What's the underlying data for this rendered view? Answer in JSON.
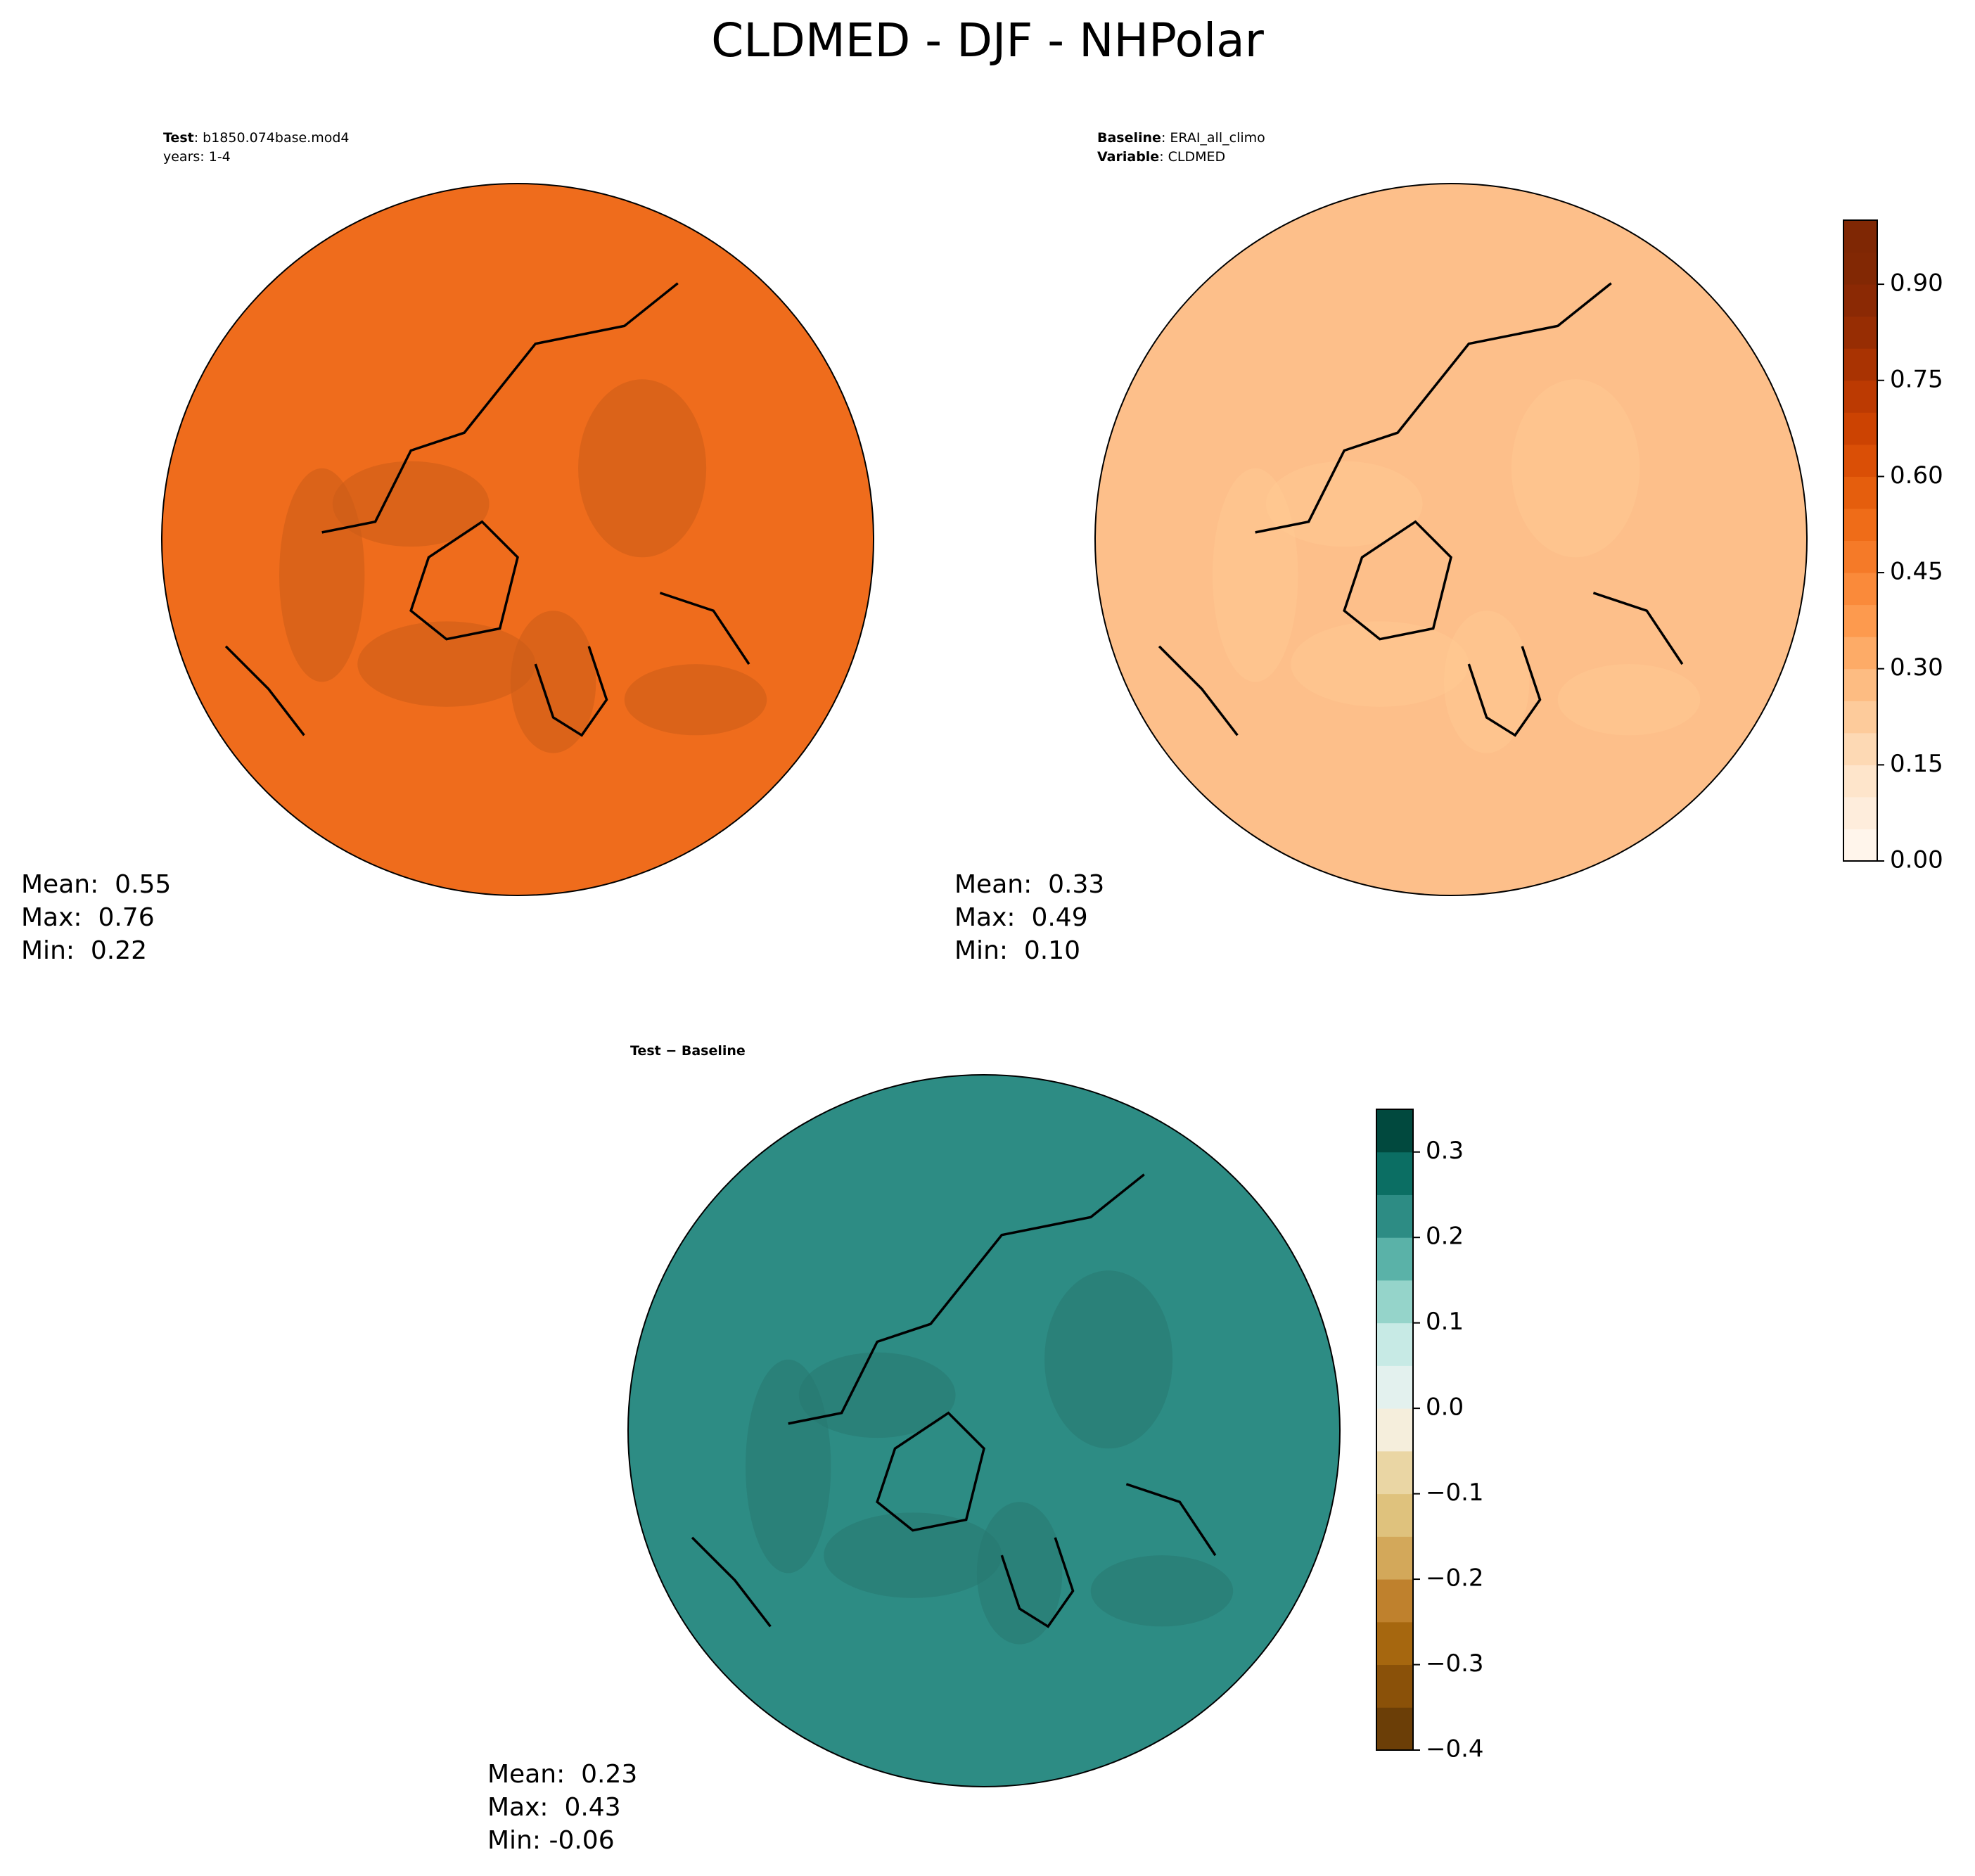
{
  "title": "CLDMED - DJF - NHPolar",
  "panels": [
    {
      "header": [
        {
          "key": "Test",
          "text": ": b1850.074base.mod4"
        },
        {
          "text": "years: 1-4"
        }
      ],
      "stats": [
        "Mean:  0.55",
        "Max:  0.76",
        "Min:  0.22"
      ],
      "field_color": "#ef6c1c"
    },
    {
      "header": [
        {
          "key": "Baseline",
          "text": ": ERAI_all_climo"
        },
        {
          "key": "Variable",
          "text": ": CLDMED"
        }
      ],
      "stats": [
        "Mean:  0.33",
        "Max:  0.49",
        "Min:  0.10"
      ],
      "field_color": "#fdbf8a"
    },
    {
      "header": [
        {
          "key": "Test − Baseline"
        }
      ],
      "stats": [
        "Mean:  0.23",
        "Max:  0.43",
        "Min: -0.06"
      ],
      "field_color": "#2d8c84"
    }
  ],
  "colorbars": [
    {
      "lim": [
        0,
        1
      ],
      "ticks": [
        {
          "value": 0,
          "label": "0.00"
        },
        {
          "value": 0.15,
          "label": "0.15"
        },
        {
          "value": 0.3,
          "label": "0.30"
        },
        {
          "value": 0.45,
          "label": "0.45"
        },
        {
          "value": 0.6,
          "label": "0.60"
        },
        {
          "value": 0.75,
          "label": "0.75"
        },
        {
          "value": 0.9,
          "label": "0.90"
        }
      ],
      "colors": [
        "#fff5eb",
        "#feeddc",
        "#fee5cb",
        "#fdd9b4",
        "#fdcb9b",
        "#fdbc82",
        "#fdab67",
        "#fd9a4e",
        "#fa8a3a",
        "#f57a28",
        "#ef6c18",
        "#e55e0d",
        "#da4f06",
        "#cc4302",
        "#bc3a02",
        "#a93302",
        "#972d03",
        "#8b2904",
        "#822804",
        "#7f2704"
      ]
    },
    {
      "lim": [
        -0.4,
        0.35
      ],
      "ticks": [
        {
          "value": -0.4,
          "label": "−0.4"
        },
        {
          "value": -0.3,
          "label": "−0.3"
        },
        {
          "value": -0.2,
          "label": "−0.2"
        },
        {
          "value": -0.1,
          "label": "−0.1"
        },
        {
          "value": 0,
          "label": "0.0"
        },
        0.1,
        0.2,
        0.3
      ],
      "colors": [
        "#6b3e07",
        "#8a5109",
        "#a6670f",
        "#bf812d",
        "#d3a85a",
        "#dfc27d",
        "#ead6a4",
        "#f5eedc",
        "#e3f1ee",
        "#c7eae5",
        "#95d4ca",
        "#5ab2a8",
        "#2d8c84",
        "#0b6e63",
        "#01493e"
      ]
    }
  ]
}
